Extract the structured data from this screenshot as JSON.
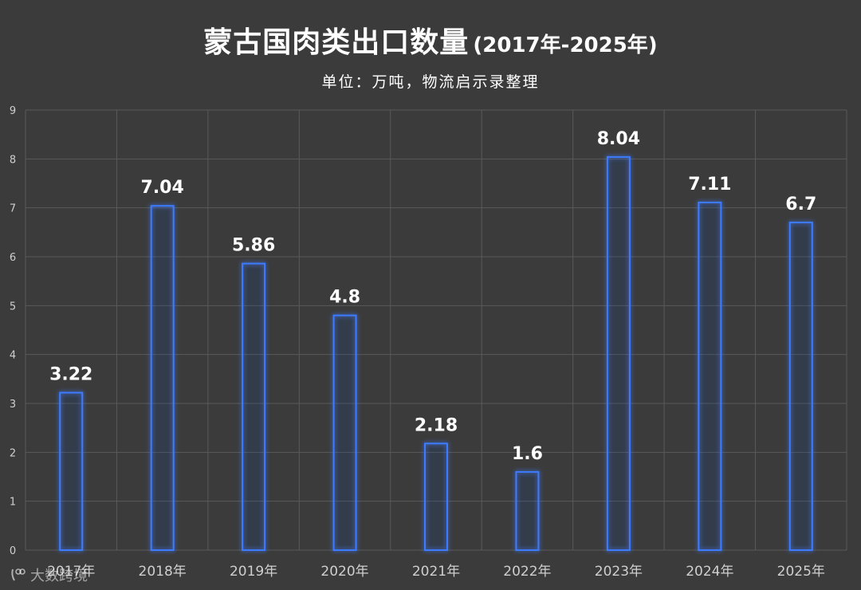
{
  "header": {
    "title_main": "蒙古国肉类出口数量",
    "title_range": "(2017年-2025年)",
    "subtitle": "单位：万吨，物流启示录整理"
  },
  "watermark": {
    "text": "大数跨境"
  },
  "colors": {
    "background": "#3b3b3b",
    "grid": "#5a5a5a",
    "bar_stroke": "#3d7bff",
    "bar_glow": "#6fa0ff",
    "text": "#ffffff",
    "tick": "#cfcfcf"
  },
  "chart_data": {
    "type": "bar",
    "title": "蒙古国肉类出口数量(2017年-2025年)",
    "subtitle": "单位：万吨，物流启示录整理",
    "xlabel": "",
    "ylabel": "",
    "categories": [
      "2017年",
      "2018年",
      "2019年",
      "2020年",
      "2021年",
      "2022年",
      "2023年",
      "2024年",
      "2025年"
    ],
    "values": [
      3.22,
      7.04,
      5.86,
      4.8,
      2.18,
      1.6,
      8.04,
      7.11,
      6.7
    ],
    "value_labels": [
      "3.22",
      "7.04",
      "5.86",
      "4.8",
      "2.18",
      "1.6",
      "8.04",
      "7.11",
      "6.7"
    ],
    "ylim": [
      0,
      9
    ],
    "yticks": [
      "0",
      "1",
      "2",
      "3",
      "4",
      "5",
      "6",
      "7",
      "8",
      "9"
    ],
    "grid": true
  }
}
